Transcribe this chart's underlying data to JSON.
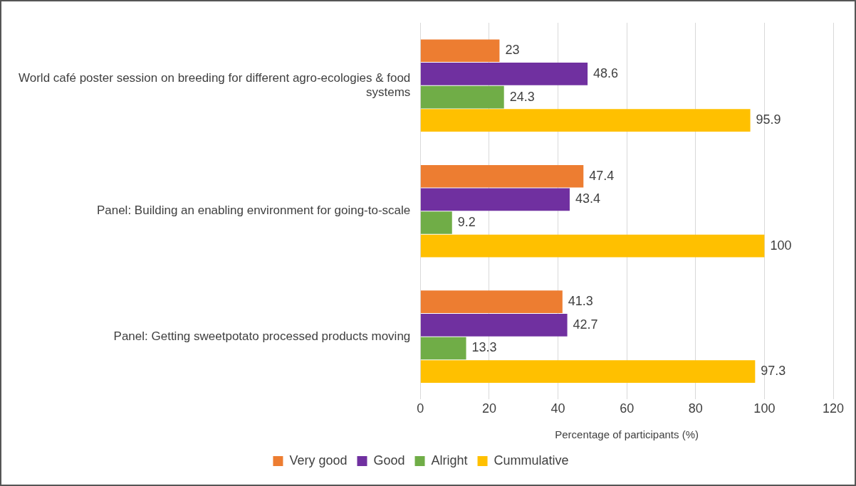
{
  "chart_data": {
    "type": "bar",
    "orientation": "horizontal",
    "categories": [
      "World café poster session on breeding for different agro-ecologies & food systems",
      "Panel: Building an enabling environment for going-to-scale",
      "Panel: Getting sweetpotato processed products moving"
    ],
    "series": [
      {
        "name": "Very good",
        "color": "#ed7d31",
        "values": [
          23,
          47.4,
          41.3
        ]
      },
      {
        "name": "Good",
        "color": "#7030a0",
        "values": [
          48.6,
          43.4,
          42.7
        ]
      },
      {
        "name": "Alright",
        "color": "#70ad47",
        "values": [
          24.3,
          9.2,
          13.3
        ]
      },
      {
        "name": "Cummulative",
        "color": "#ffc000",
        "values": [
          95.9,
          100,
          97.3
        ]
      }
    ],
    "xlabel": "Percentage of participants (%)",
    "xlim": [
      0,
      120
    ],
    "xticks": [
      0,
      20,
      40,
      60,
      80,
      100,
      120
    ],
    "grid": "x",
    "legend": "bottom",
    "data_labels": true
  }
}
